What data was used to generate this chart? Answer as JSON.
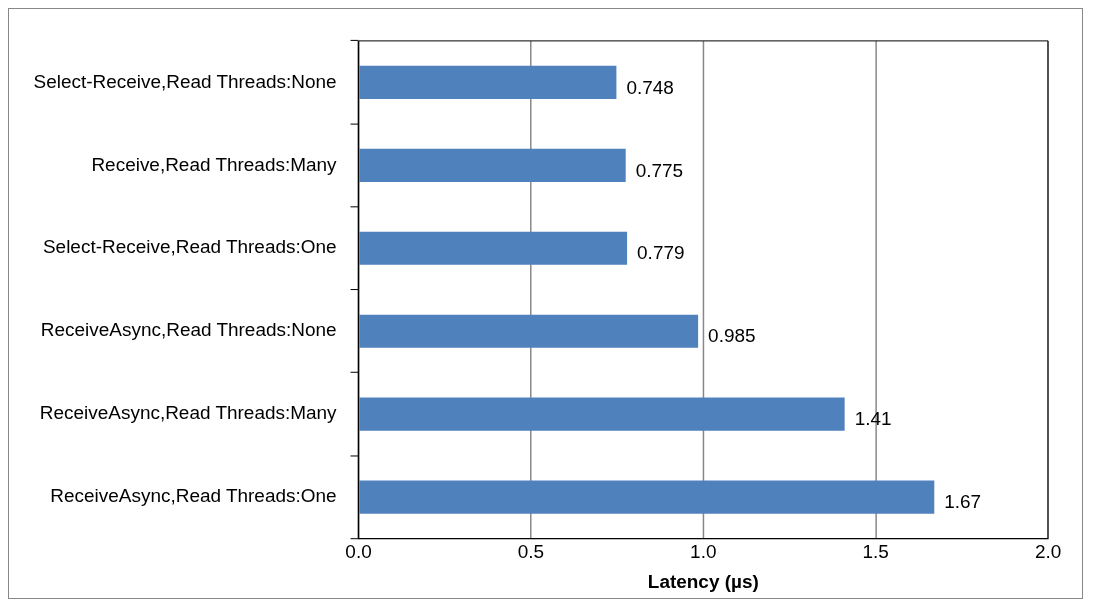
{
  "chart_data": {
    "type": "bar",
    "orientation": "horizontal",
    "xlabel": "Latency (µs)",
    "categories": [
      "Select-Receive,Read Threads:None",
      "Receive,Read Threads:Many",
      "Select-Receive,Read Threads:One",
      "ReceiveAsync,Read Threads:None",
      "ReceiveAsync,Read Threads:Many",
      "ReceiveAsync,Read Threads:One"
    ],
    "values": [
      0.748,
      0.775,
      0.779,
      0.985,
      1.41,
      1.67
    ],
    "color": "#4f81bd",
    "xlim": [
      0,
      2
    ],
    "xticks": [
      {
        "value": 0,
        "label": "0.0"
      },
      {
        "value": 0.5,
        "label": "0.5"
      },
      {
        "value": 1,
        "label": "1.0"
      },
      {
        "value": 1.5,
        "label": "1.5"
      },
      {
        "value": 2,
        "label": "2.0"
      }
    ],
    "grid": "x",
    "data_labels": true,
    "legend": false
  }
}
